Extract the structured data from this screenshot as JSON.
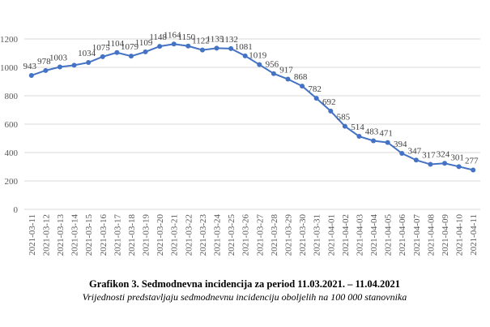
{
  "chart_data": {
    "type": "line",
    "title": "Grafikon 3. Sedmodnevna incidencija za period 11.03.2021. – 11.04.2021",
    "subtitle": "Vrijednosti predstavljaju sedmodnevnu incidenciju oboljelih na 100 000 stanovnika",
    "categories": [
      "2021-03-11",
      "2021-03-12",
      "2021-03-13",
      "2021-03-14",
      "2021-03-15",
      "2021-03-16",
      "2021-03-17",
      "2021-03-18",
      "2021-03-19",
      "2021-03-20",
      "2021-03-21",
      "2021-03-22",
      "2021-03-23",
      "2021-03-24",
      "2021-03-25",
      "2021-03-26",
      "2021-03-27",
      "2021-03-28",
      "2021-03-29",
      "2021-03-30",
      "2021-03-31",
      "2021-04-01",
      "2021-04-02",
      "2021-04-03",
      "2021-04-04",
      "2021-04-05",
      "2021-04-06",
      "2021-04-07",
      "2021-04-08",
      "2021-04-09",
      "2021-04-10",
      "2021-04-11"
    ],
    "series": [
      {
        "name": "Sedmodnevna incidencija",
        "color": "#4472c4",
        "values": [
          943,
          978,
          1003,
          1015,
          1034,
          1075,
          1104,
          1079,
          1109,
          1148,
          1164,
          1150,
          1122,
          1135,
          1132,
          1081,
          1019,
          956,
          917,
          868,
          782,
          692,
          585,
          514,
          483,
          471,
          394,
          347,
          317,
          324,
          301,
          277
        ],
        "value_labels": [
          "943",
          "978",
          "1003",
          null,
          "1034",
          "1075",
          "1104",
          "1079",
          "1109",
          "1148",
          "1164",
          "1150",
          "1122",
          "1135",
          "1132",
          "1081",
          "1019",
          "956",
          "917",
          "868",
          "782",
          "692",
          "585",
          "514",
          "483",
          "471",
          "394",
          "347",
          "317",
          "324",
          "301",
          "277"
        ]
      }
    ],
    "ylim": [
      0,
      1200
    ],
    "yticks": [
      0,
      200,
      400,
      600,
      800,
      1000,
      1200
    ],
    "grid": true
  }
}
